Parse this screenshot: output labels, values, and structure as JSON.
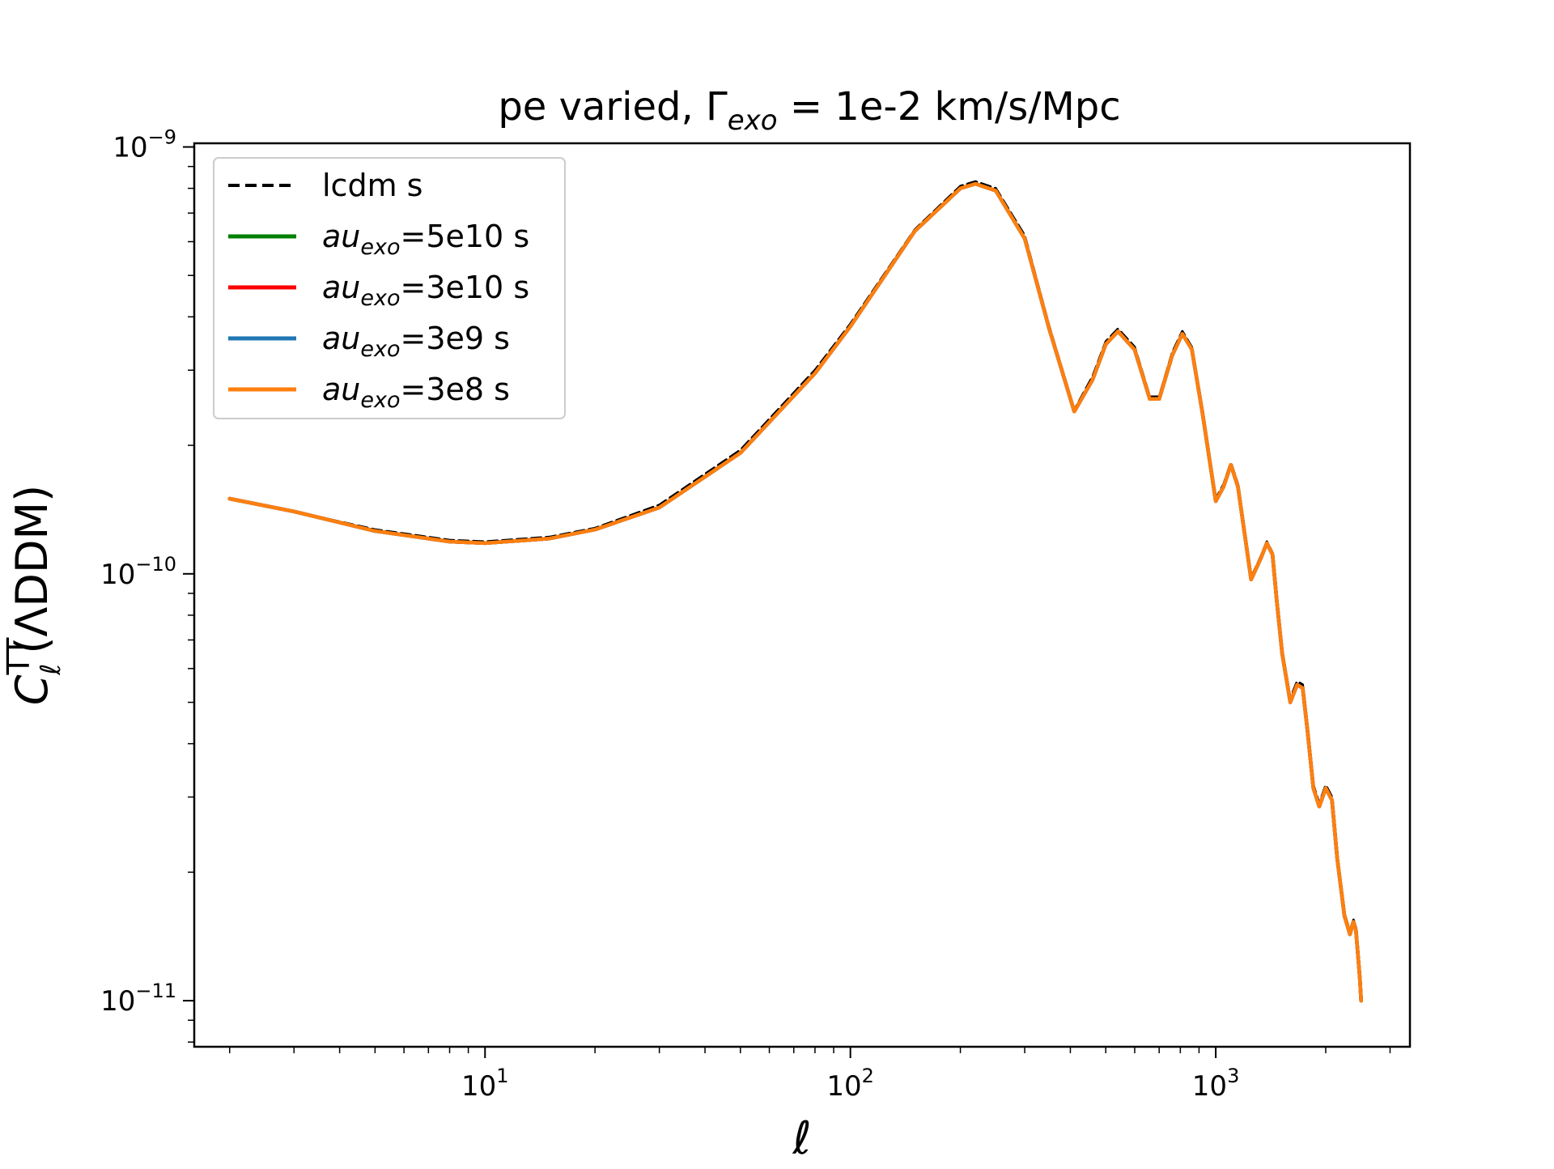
{
  "chart_data": {
    "type": "line",
    "title": "pe varied, Γ",
    "title_sub": "exo",
    "title_rest": " = 1e-2 km/s/Mpc",
    "xlabel": "ℓ",
    "ylabel_main": "C",
    "ylabel_sub": "ℓ",
    "ylabel_sup": "TT",
    "ylabel_rest": "(ΛDDM)",
    "xscale": "log",
    "yscale": "log",
    "xlim": [
      1.6,
      3400
    ],
    "ylim": [
      7.8e-12,
      1.02e-09
    ],
    "grid": false,
    "legend_position": "upper left",
    "x_ticks": [
      {
        "value": 10,
        "base": "10",
        "exp": "1"
      },
      {
        "value": 100,
        "base": "10",
        "exp": "2"
      },
      {
        "value": 1000,
        "base": "10",
        "exp": "3"
      }
    ],
    "y_ticks": [
      {
        "value": 1e-11,
        "base": "10",
        "exp": "−11"
      },
      {
        "value": 1e-10,
        "base": "10",
        "exp": "−10"
      },
      {
        "value": 1e-09,
        "base": "10",
        "exp": "−9"
      }
    ],
    "x": [
      2,
      3,
      5,
      8,
      10,
      15,
      20,
      30,
      50,
      80,
      100,
      150,
      200,
      220,
      250,
      300,
      350,
      410,
      460,
      500,
      540,
      600,
      660,
      700,
      760,
      810,
      860,
      920,
      1000,
      1050,
      1100,
      1150,
      1200,
      1250,
      1330,
      1380,
      1430,
      1470,
      1520,
      1600,
      1670,
      1730,
      1780,
      1850,
      1920,
      2000,
      2080,
      2150,
      2250,
      2330,
      2380,
      2420,
      2480,
      2500
    ],
    "series": [
      {
        "name": "lcdm s",
        "color": "#000000",
        "dash": true,
        "values": [
          1.5e-10,
          1.4e-10,
          1.27e-10,
          1.2e-10,
          1.19e-10,
          1.22e-10,
          1.28e-10,
          1.45e-10,
          1.95e-10,
          3e-10,
          3.85e-10,
          6.4e-10,
          8.1e-10,
          8.3e-10,
          8e-10,
          6.2e-10,
          3.8e-10,
          2.42e-10,
          2.9e-10,
          3.5e-10,
          3.75e-10,
          3.4e-10,
          2.6e-10,
          2.6e-10,
          3.3e-10,
          3.7e-10,
          3.4e-10,
          2.4e-10,
          1.5e-10,
          1.62e-10,
          1.82e-10,
          1.62e-10,
          1.25e-10,
          9.8e-11,
          1.1e-10,
          1.19e-10,
          1.12e-10,
          8.7e-11,
          6.6e-11,
          5.1e-11,
          5.6e-11,
          5.5e-11,
          4.4e-11,
          3.2e-11,
          2.9e-11,
          3.2e-11,
          3e-11,
          2.2e-11,
          1.6e-11,
          1.45e-11,
          1.55e-11,
          1.48e-11,
          1.15e-11,
          1.02e-11
        ]
      },
      {
        "name": "=5e10 s",
        "color": "#008000",
        "dash": false,
        "values": [
          1.5e-10,
          1.4e-10,
          1.26e-10,
          1.19e-10,
          1.18e-10,
          1.21e-10,
          1.27e-10,
          1.43e-10,
          1.92e-10,
          2.95e-10,
          3.8e-10,
          6.35e-10,
          8e-10,
          8.2e-10,
          7.9e-10,
          6.1e-10,
          3.75e-10,
          2.4e-10,
          2.85e-10,
          3.45e-10,
          3.7e-10,
          3.35e-10,
          2.57e-10,
          2.57e-10,
          3.25e-10,
          3.65e-10,
          3.36e-10,
          2.38e-10,
          1.48e-10,
          1.6e-10,
          1.8e-10,
          1.6e-10,
          1.24e-10,
          9.7e-11,
          1.09e-10,
          1.18e-10,
          1.11e-10,
          8.6e-11,
          6.5e-11,
          5e-11,
          5.5e-11,
          5.4e-11,
          4.35e-11,
          3.15e-11,
          2.85e-11,
          3.15e-11,
          2.95e-11,
          2.15e-11,
          1.58e-11,
          1.43e-11,
          1.53e-11,
          1.46e-11,
          1.13e-11,
          1e-11
        ]
      },
      {
        "name": "=3e10 s",
        "color": "#ff0000",
        "dash": false,
        "values": [
          1.5e-10,
          1.4e-10,
          1.26e-10,
          1.19e-10,
          1.18e-10,
          1.21e-10,
          1.27e-10,
          1.43e-10,
          1.92e-10,
          2.95e-10,
          3.8e-10,
          6.35e-10,
          8e-10,
          8.2e-10,
          7.9e-10,
          6.1e-10,
          3.75e-10,
          2.4e-10,
          2.85e-10,
          3.45e-10,
          3.7e-10,
          3.35e-10,
          2.57e-10,
          2.57e-10,
          3.25e-10,
          3.65e-10,
          3.36e-10,
          2.38e-10,
          1.48e-10,
          1.6e-10,
          1.8e-10,
          1.6e-10,
          1.24e-10,
          9.7e-11,
          1.09e-10,
          1.18e-10,
          1.11e-10,
          8.6e-11,
          6.5e-11,
          5e-11,
          5.5e-11,
          5.4e-11,
          4.35e-11,
          3.15e-11,
          2.85e-11,
          3.15e-11,
          2.95e-11,
          2.15e-11,
          1.58e-11,
          1.43e-11,
          1.53e-11,
          1.46e-11,
          1.13e-11,
          1e-11
        ]
      },
      {
        "name": "=3e9 s",
        "color": "#1f77b4",
        "dash": false,
        "values": [
          1.5e-10,
          1.4e-10,
          1.26e-10,
          1.19e-10,
          1.18e-10,
          1.21e-10,
          1.27e-10,
          1.43e-10,
          1.92e-10,
          2.95e-10,
          3.8e-10,
          6.35e-10,
          8e-10,
          8.2e-10,
          7.9e-10,
          6.1e-10,
          3.75e-10,
          2.4e-10,
          2.85e-10,
          3.45e-10,
          3.7e-10,
          3.35e-10,
          2.57e-10,
          2.57e-10,
          3.25e-10,
          3.65e-10,
          3.36e-10,
          2.38e-10,
          1.48e-10,
          1.6e-10,
          1.8e-10,
          1.6e-10,
          1.24e-10,
          9.7e-11,
          1.09e-10,
          1.18e-10,
          1.11e-10,
          8.6e-11,
          6.5e-11,
          5e-11,
          5.5e-11,
          5.4e-11,
          4.35e-11,
          3.15e-11,
          2.85e-11,
          3.15e-11,
          2.95e-11,
          2.15e-11,
          1.58e-11,
          1.43e-11,
          1.53e-11,
          1.46e-11,
          1.13e-11,
          1e-11
        ]
      },
      {
        "name": "=3e8 s",
        "color": "#ff7f0e",
        "dash": false,
        "values": [
          1.5e-10,
          1.4e-10,
          1.26e-10,
          1.19e-10,
          1.18e-10,
          1.21e-10,
          1.27e-10,
          1.43e-10,
          1.92e-10,
          2.95e-10,
          3.8e-10,
          6.35e-10,
          8e-10,
          8.2e-10,
          7.9e-10,
          6.1e-10,
          3.75e-10,
          2.4e-10,
          2.85e-10,
          3.45e-10,
          3.7e-10,
          3.35e-10,
          2.57e-10,
          2.57e-10,
          3.25e-10,
          3.65e-10,
          3.36e-10,
          2.38e-10,
          1.48e-10,
          1.6e-10,
          1.8e-10,
          1.6e-10,
          1.24e-10,
          9.7e-11,
          1.09e-10,
          1.18e-10,
          1.11e-10,
          8.6e-11,
          6.5e-11,
          5e-11,
          5.5e-11,
          5.4e-11,
          4.35e-11,
          3.15e-11,
          2.85e-11,
          3.15e-11,
          2.95e-11,
          2.15e-11,
          1.58e-11,
          1.43e-11,
          1.53e-11,
          1.46e-11,
          1.13e-11,
          1e-11
        ]
      }
    ],
    "legend": [
      {
        "label": "lcdm s",
        "italic_prefix": "",
        "sub": ""
      },
      {
        "label": "=5e10 s",
        "italic_prefix": "au",
        "sub": "exo"
      },
      {
        "label": "=3e10 s",
        "italic_prefix": "au",
        "sub": "exo"
      },
      {
        "label": "=3e9 s",
        "italic_prefix": "au",
        "sub": "exo"
      },
      {
        "label": "=3e8 s",
        "italic_prefix": "au",
        "sub": "exo"
      }
    ]
  }
}
